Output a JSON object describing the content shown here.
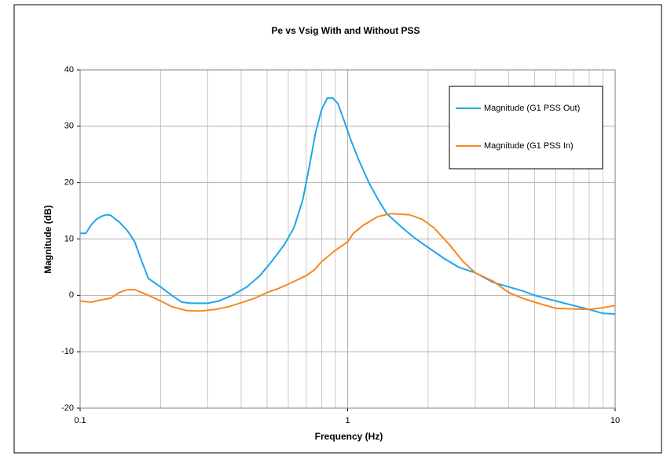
{
  "chart_data": {
    "type": "line",
    "title": "Pe vs Vsig  With and Without PSS",
    "x_label": "Frequency (Hz)",
    "y_label": "Magnitude (dB)",
    "xscale": "log",
    "xlim": [
      0.1,
      10
    ],
    "xticks": [
      0.1,
      1,
      10
    ],
    "xminorticks": [
      0.2,
      0.3,
      0.4,
      0.5,
      0.6,
      0.7,
      0.8,
      0.9,
      2,
      3,
      4,
      5,
      6,
      7,
      8,
      9
    ],
    "ylim": [
      -20,
      40
    ],
    "yticks": [
      -20,
      -10,
      0,
      10,
      20,
      30,
      40
    ],
    "grid": true,
    "legend": "upper right",
    "series": [
      {
        "name": "Magnitude (G1 PSS Out)",
        "color": "#1ea7e8",
        "x": [
          0.1,
          0.105,
          0.11,
          0.115,
          0.12,
          0.125,
          0.13,
          0.14,
          0.15,
          0.16,
          0.17,
          0.18,
          0.2,
          0.22,
          0.24,
          0.26,
          0.3,
          0.33,
          0.37,
          0.42,
          0.47,
          0.52,
          0.58,
          0.63,
          0.68,
          0.72,
          0.76,
          0.8,
          0.84,
          0.88,
          0.92,
          0.97,
          1.02,
          1.1,
          1.2,
          1.3,
          1.4,
          1.6,
          1.8,
          2,
          2.3,
          2.6,
          3,
          3.5,
          4,
          4.5,
          5,
          6,
          7,
          8,
          9,
          10
        ],
        "values": [
          11,
          11,
          12.5,
          13.5,
          14,
          14.3,
          14.2,
          13,
          11.5,
          9.5,
          6,
          3,
          1.5,
          0,
          -1.2,
          -1.4,
          -1.4,
          -1,
          0,
          1.5,
          3.5,
          6,
          9,
          12,
          17,
          23,
          29,
          33,
          35,
          35,
          34,
          31,
          28,
          24,
          20,
          17,
          14.5,
          12,
          10,
          8.5,
          6.5,
          5,
          4,
          2.3,
          1.5,
          0.8,
          0,
          -1,
          -1.8,
          -2.5,
          -3.2,
          -3.3
        ]
      },
      {
        "name": "Magnitude (G1 PSS In)",
        "color": "#f58a1f",
        "x": [
          0.1,
          0.11,
          0.12,
          0.13,
          0.14,
          0.15,
          0.16,
          0.17,
          0.18,
          0.2,
          0.22,
          0.25,
          0.28,
          0.32,
          0.36,
          0.4,
          0.45,
          0.5,
          0.55,
          0.6,
          0.7,
          0.75,
          0.8,
          0.9,
          1,
          1.05,
          1.15,
          1.3,
          1.45,
          1.7,
          1.9,
          2.1,
          2.4,
          2.7,
          3,
          3.5,
          4,
          4.5,
          5,
          6,
          7,
          8,
          9,
          10
        ],
        "values": [
          -1,
          -1.2,
          -0.8,
          -0.5,
          0.5,
          1,
          1,
          0.5,
          0,
          -1,
          -2,
          -2.7,
          -2.8,
          -2.5,
          -2,
          -1.3,
          -0.5,
          0.5,
          1.2,
          2,
          3.5,
          4.5,
          6,
          8,
          9.5,
          11,
          12.5,
          14,
          14.5,
          14.3,
          13.5,
          12,
          9,
          6,
          4,
          2.5,
          0.5,
          -0.5,
          -1.2,
          -2.3,
          -2.4,
          -2.5,
          -2.2,
          -1.8
        ]
      }
    ]
  }
}
